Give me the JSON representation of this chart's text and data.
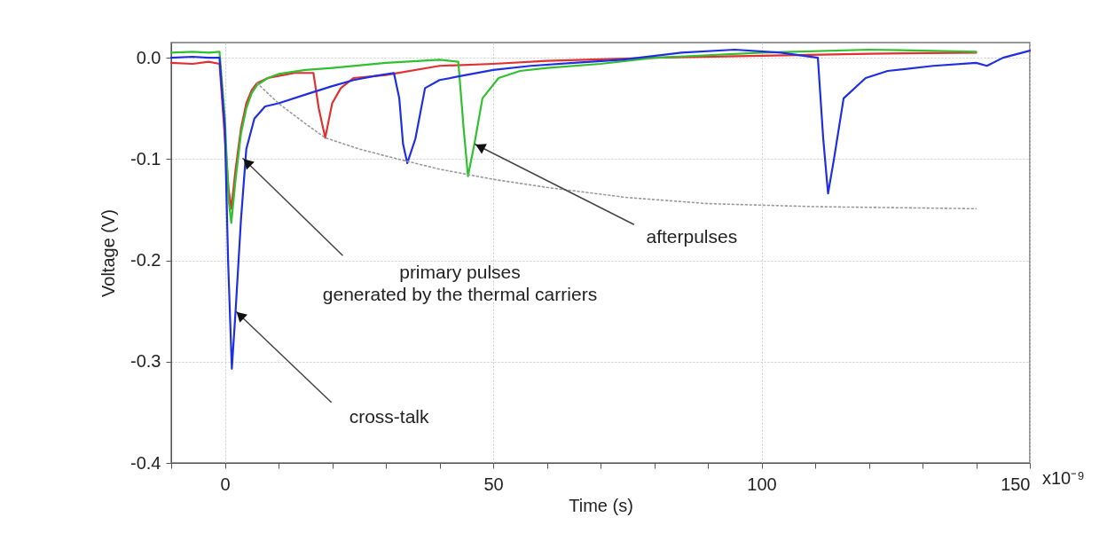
{
  "chart_data": {
    "type": "line",
    "xlabel": "Time (s)",
    "ylabel": "Voltage (V)",
    "xlim": [
      -10,
      150
    ],
    "ylim": [
      -0.4,
      0.015
    ],
    "xticks": [
      {
        "value": -10,
        "label": null
      },
      0,
      {
        "value": 10,
        "label": null
      },
      {
        "value": 20,
        "label": null
      },
      {
        "value": 30,
        "label": null
      },
      {
        "value": 40,
        "label": null
      },
      50,
      {
        "value": 60,
        "label": null
      },
      {
        "value": 70,
        "label": null
      },
      {
        "value": 80,
        "label": null
      },
      {
        "value": 90,
        "label": null
      },
      100,
      {
        "value": 110,
        "label": null
      },
      {
        "value": 120,
        "label": null
      },
      {
        "value": 130,
        "label": null
      },
      {
        "value": 140,
        "label": null
      },
      150
    ],
    "yticks": [
      {
        "value": 0,
        "label": "0.0"
      },
      -0.1,
      -0.2,
      -0.3,
      -0.4
    ],
    "grid": true,
    "marker": "none",
    "series": [
      {
        "color": "#e03030",
        "line_style": "solid",
        "x": [
          -10,
          -6,
          -3,
          -1,
          0.7,
          1.2,
          2,
          3,
          4,
          5,
          6,
          8,
          10,
          13,
          16.5,
          17.5,
          18.7,
          20,
          21.6,
          24,
          30,
          40,
          50,
          60,
          80,
          100,
          120,
          140
        ],
        "values": [
          -0.005,
          -0.006,
          -0.004,
          -0.006,
          -0.13,
          -0.149,
          -0.11,
          -0.07,
          -0.045,
          -0.032,
          -0.025,
          -0.02,
          -0.018,
          -0.015,
          -0.015,
          -0.05,
          -0.079,
          -0.045,
          -0.03,
          -0.02,
          -0.017,
          -0.008,
          -0.006,
          -0.003,
          0.0,
          0.002,
          0.004,
          0.005
        ]
      },
      {
        "color": "#30c030",
        "line_style": "solid",
        "x": [
          -10,
          -6,
          -3,
          -1,
          0,
          0.7,
          1.2,
          2,
          3,
          4,
          5,
          6,
          8,
          10,
          15,
          20,
          30,
          40,
          43.5,
          44.5,
          45.3,
          46.5,
          48,
          51,
          55,
          60,
          70,
          80,
          100,
          120,
          140
        ],
        "values": [
          0.005,
          0.006,
          0.005,
          0.006,
          -0.06,
          -0.14,
          -0.163,
          -0.12,
          -0.075,
          -0.05,
          -0.035,
          -0.027,
          -0.02,
          -0.016,
          -0.012,
          -0.01,
          -0.005,
          -0.002,
          -0.004,
          -0.07,
          -0.117,
          -0.085,
          -0.04,
          -0.02,
          -0.013,
          -0.01,
          -0.006,
          0.0,
          0.005,
          0.008,
          0.006
        ]
      },
      {
        "color": "#1f2fe0",
        "line_style": "solid",
        "x": [
          -10,
          -6,
          -3,
          -1,
          0,
          0.6,
          1.3,
          2,
          3,
          4,
          5.5,
          7.5,
          10,
          15.8,
          20,
          24,
          28,
          31.5,
          32.5,
          33.2,
          34,
          35.5,
          37.3,
          40,
          44,
          50,
          57,
          65,
          74,
          85,
          95,
          103.6,
          110.5,
          111.5,
          112.4,
          113.5,
          115.3,
          119.4,
          123.5,
          132,
          140,
          142,
          145,
          150
        ],
        "values": [
          0.0,
          0.001,
          0.0,
          0.0,
          -0.07,
          -0.2,
          -0.307,
          -0.25,
          -0.16,
          -0.09,
          -0.06,
          -0.048,
          -0.045,
          -0.035,
          -0.028,
          -0.022,
          -0.018,
          -0.015,
          -0.04,
          -0.085,
          -0.104,
          -0.08,
          -0.03,
          -0.022,
          -0.018,
          -0.012,
          -0.008,
          -0.005,
          -0.002,
          0.005,
          0.008,
          0.005,
          0.0,
          -0.08,
          -0.134,
          -0.1,
          -0.04,
          -0.02,
          -0.013,
          -0.008,
          -0.005,
          -0.008,
          0.0,
          0.007
        ]
      },
      {
        "color": "#999999",
        "line_style": "dotted",
        "x": [
          6,
          10,
          15,
          18.7,
          25,
          30,
          40,
          50,
          60,
          75,
          90,
          110,
          140
        ],
        "values": [
          -0.025,
          -0.045,
          -0.065,
          -0.079,
          -0.09,
          -0.097,
          -0.11,
          -0.12,
          -0.128,
          -0.138,
          -0.144,
          -0.147,
          -0.149
        ]
      }
    ],
    "annotations": [
      {
        "text": "primary pulses\ngenerated by the thermal carriers",
        "x": 3.3,
        "y": -0.099
      },
      {
        "text": "afterpulses",
        "x": 46.5,
        "y": -0.085
      },
      {
        "text": "cross-talk",
        "x": 2,
        "y": -0.25
      },
      "x10⁻⁹"
    ]
  }
}
